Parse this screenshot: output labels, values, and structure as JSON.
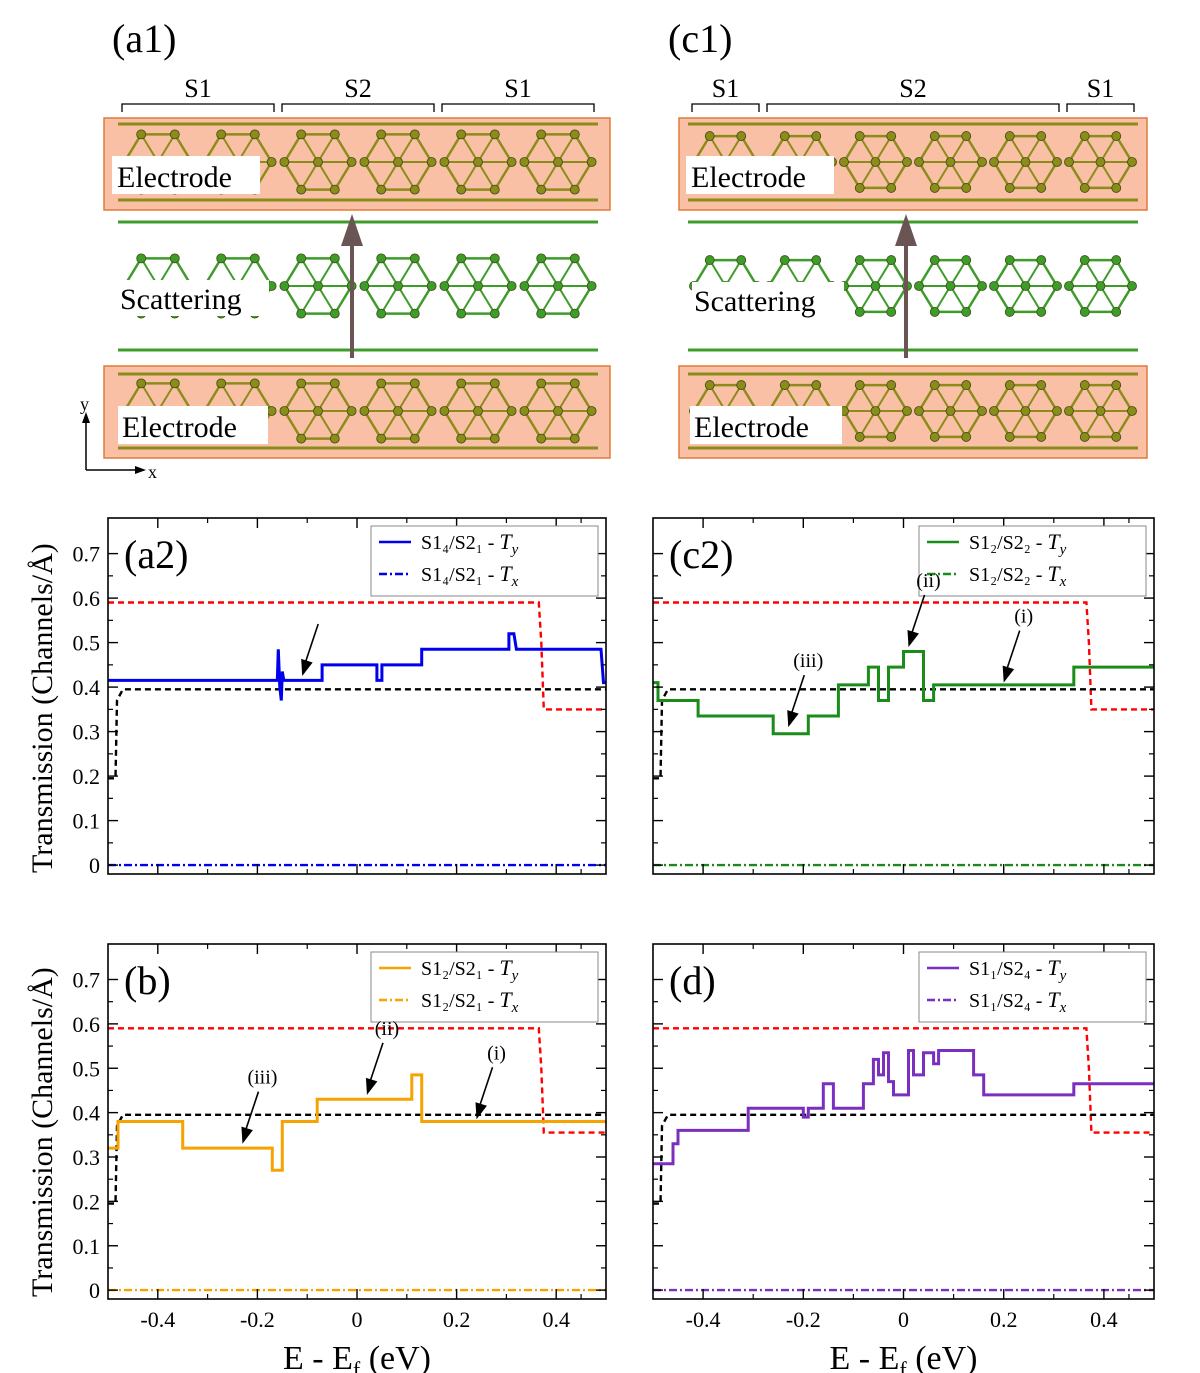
{
  "structures": [
    {
      "label": "(a1)",
      "segments": [
        {
          "text": "S1",
          "from": 0,
          "to": 4
        },
        {
          "text": "S2",
          "from": 4,
          "to": 8
        },
        {
          "text": "S1",
          "from": 8,
          "to": 12
        }
      ],
      "electrode_top": "Electrode",
      "scattering": "Scattering",
      "electrode_bottom": "Electrode",
      "axis_y": "y",
      "axis_x": "x",
      "colors": {
        "electrode_fill": "#f9c0a6",
        "electrode_edge": "#e07b39",
        "atom_top": "#8c8c1a",
        "atom_mid": "#3e9c2a",
        "arrow": "#6b5554"
      }
    },
    {
      "label": "(c1)",
      "segments": [
        {
          "text": "S1",
          "from": 0,
          "to": 2
        },
        {
          "text": "S2",
          "from": 2,
          "to": 10
        },
        {
          "text": "S1",
          "from": 10,
          "to": 12
        }
      ],
      "electrode_top": "Electrode",
      "scattering": "Scattering",
      "electrode_bottom": "Electrode",
      "colors": {
        "electrode_fill": "#f9c0a6",
        "electrode_edge": "#e07b39",
        "atom_top": "#8c8c1a",
        "atom_mid": "#3e9c2a",
        "arrow": "#6b5554"
      }
    }
  ],
  "chart_data": [
    {
      "type": "line",
      "panel_label": "(a2)",
      "ylabel": "Transmission (Channels/Å)",
      "xlabel": "",
      "xlim": [
        -0.5,
        0.5
      ],
      "ylim": [
        -0.02,
        0.78
      ],
      "yticks": [
        0,
        0.1,
        0.2,
        0.3,
        0.4,
        0.5,
        0.6,
        0.7
      ],
      "ytick_labels": [
        "0",
        "0.1",
        "0.2",
        "0.3",
        "0.4",
        "0.5",
        "0.6",
        "0.7"
      ],
      "legend": [
        {
          "label": "S1₄/S2₁ - ",
          "var": "T",
          "sub": "y",
          "color": "#0000ee",
          "style": "solid"
        },
        {
          "label": "S1₄/S2₁ - ",
          "var": "T",
          "sub": "x",
          "color": "#0000ee",
          "style": "dashdot"
        }
      ],
      "series": [
        {
          "name": "red-dashed",
          "color": "#ff0000",
          "style": "dashed",
          "x": [
            -0.5,
            0.365,
            0.37,
            0.375,
            0.5
          ],
          "y": [
            0.59,
            0.59,
            0.5,
            0.35,
            0.35
          ]
        },
        {
          "name": "black-dashed",
          "color": "#000000",
          "style": "dashed",
          "x": [
            -0.5,
            -0.485,
            -0.482,
            -0.475,
            -0.47,
            0.5
          ],
          "y": [
            0.195,
            0.195,
            0.37,
            0.385,
            0.395,
            0.395
          ]
        },
        {
          "name": "S1₄/S2₁ - Ty",
          "color": "#0000ee",
          "style": "solid",
          "x": [
            -0.5,
            -0.16,
            -0.158,
            -0.155,
            -0.152,
            -0.15,
            -0.147,
            -0.145,
            -0.07,
            -0.07,
            0.04,
            0.04,
            0.05,
            0.05,
            0.13,
            0.13,
            0.305,
            0.305,
            0.315,
            0.32,
            0.49,
            0.495,
            0.5
          ],
          "y": [
            0.415,
            0.415,
            0.485,
            0.4,
            0.37,
            0.435,
            0.415,
            0.415,
            0.415,
            0.45,
            0.45,
            0.415,
            0.415,
            0.45,
            0.45,
            0.485,
            0.485,
            0.52,
            0.52,
            0.485,
            0.485,
            0.41,
            0.41
          ]
        },
        {
          "name": "S1₄/S2₁ - Tx",
          "color": "#0000ee",
          "style": "dashdot",
          "x": [
            -0.5,
            0.5
          ],
          "y": [
            0,
            0
          ]
        }
      ],
      "annotations": [
        {
          "text": "",
          "x": -0.11,
          "y": 0.425
        }
      ]
    },
    {
      "type": "line",
      "panel_label": "(c2)",
      "xlim": [
        -0.5,
        0.5
      ],
      "ylim": [
        -0.02,
        0.78
      ],
      "legend": [
        {
          "label": "S1₂/S2₂ - ",
          "var": "T",
          "sub": "y",
          "color": "#1a8c1a",
          "style": "solid"
        },
        {
          "label": "S1₂/S2₂ - ",
          "var": "T",
          "sub": "x",
          "color": "#1a8c1a",
          "style": "dashdot"
        }
      ],
      "series": [
        {
          "name": "red-dashed",
          "color": "#ff0000",
          "style": "dashed",
          "x": [
            -0.5,
            0.365,
            0.37,
            0.375,
            0.5
          ],
          "y": [
            0.59,
            0.59,
            0.5,
            0.35,
            0.35
          ]
        },
        {
          "name": "black-dashed",
          "color": "#000000",
          "style": "dashed",
          "x": [
            -0.5,
            -0.485,
            -0.482,
            -0.475,
            -0.47,
            0.5
          ],
          "y": [
            0.195,
            0.195,
            0.37,
            0.385,
            0.395,
            0.395
          ]
        },
        {
          "name": "S1₂/S2₂ - Ty",
          "color": "#1a8c1a",
          "style": "solid",
          "x": [
            -0.5,
            -0.49,
            -0.49,
            -0.41,
            -0.41,
            -0.26,
            -0.26,
            -0.19,
            -0.19,
            -0.13,
            -0.13,
            -0.07,
            -0.07,
            -0.05,
            -0.05,
            -0.03,
            -0.03,
            0.0,
            0.0,
            0.04,
            0.04,
            0.06,
            0.06,
            0.34,
            0.34,
            0.5
          ],
          "y": [
            0.41,
            0.41,
            0.37,
            0.37,
            0.335,
            0.335,
            0.295,
            0.295,
            0.335,
            0.335,
            0.405,
            0.405,
            0.445,
            0.445,
            0.37,
            0.37,
            0.445,
            0.445,
            0.48,
            0.48,
            0.37,
            0.37,
            0.405,
            0.405,
            0.445,
            0.445
          ]
        },
        {
          "name": "S1₂/S2₂ - Tx",
          "color": "#1a8c1a",
          "style": "dashdot",
          "x": [
            -0.5,
            0.5
          ],
          "y": [
            0,
            0
          ]
        }
      ],
      "annotations": [
        {
          "text": "(iii)",
          "x": -0.23,
          "y": 0.31
        },
        {
          "text": "(ii)",
          "x": 0.01,
          "y": 0.49
        },
        {
          "text": "(i)",
          "x": 0.2,
          "y": 0.41
        }
      ]
    },
    {
      "type": "line",
      "panel_label": "(b)",
      "ylabel": "Transmission (Channels/Å)",
      "xlabel_main": "E - E",
      "xlabel_sub": "f",
      "xlabel_unit": " (eV)",
      "xlim": [
        -0.5,
        0.5
      ],
      "ylim": [
        -0.02,
        0.78
      ],
      "xticks": [
        -0.4,
        -0.2,
        0,
        0.2,
        0.4
      ],
      "xtick_labels": [
        "-0.4",
        "-0.2",
        "0",
        "0.2",
        "0.4"
      ],
      "yticks": [
        0,
        0.1,
        0.2,
        0.3,
        0.4,
        0.5,
        0.6,
        0.7
      ],
      "ytick_labels": [
        "0",
        "0.1",
        "0.2",
        "0.3",
        "0.4",
        "0.5",
        "0.6",
        "0.7"
      ],
      "legend": [
        {
          "label": "S1₂/S2₁ - ",
          "var": "T",
          "sub": "y",
          "color": "#f5a300",
          "style": "solid"
        },
        {
          "label": "S1₂/S2₁ - ",
          "var": "T",
          "sub": "x",
          "color": "#f5a300",
          "style": "dashdot"
        }
      ],
      "series": [
        {
          "name": "red-dashed",
          "color": "#ff0000",
          "style": "dashed",
          "x": [
            -0.5,
            0.365,
            0.37,
            0.375,
            0.5
          ],
          "y": [
            0.59,
            0.59,
            0.5,
            0.355,
            0.355
          ]
        },
        {
          "name": "black-dashed",
          "color": "#000000",
          "style": "dashed",
          "x": [
            -0.5,
            -0.485,
            -0.482,
            -0.475,
            -0.47,
            0.5
          ],
          "y": [
            0.195,
            0.195,
            0.37,
            0.385,
            0.395,
            0.395
          ]
        },
        {
          "name": "S1₂/S2₁ - Ty",
          "color": "#f5a300",
          "style": "solid",
          "x": [
            -0.5,
            -0.48,
            -0.48,
            -0.35,
            -0.35,
            -0.17,
            -0.17,
            -0.15,
            -0.15,
            -0.08,
            -0.08,
            0.11,
            0.11,
            0.13,
            0.13,
            0.5
          ],
          "y": [
            0.32,
            0.32,
            0.38,
            0.38,
            0.32,
            0.32,
            0.27,
            0.27,
            0.38,
            0.38,
            0.43,
            0.43,
            0.485,
            0.485,
            0.38,
            0.38
          ]
        },
        {
          "name": "S1₂/S2₁ - Tx",
          "color": "#f5a300",
          "style": "dashdot",
          "x": [
            -0.5,
            0.5
          ],
          "y": [
            0,
            0
          ]
        }
      ],
      "annotations": [
        {
          "text": "(iii)",
          "x": -0.23,
          "y": 0.33
        },
        {
          "text": "(ii)",
          "x": 0.02,
          "y": 0.44
        },
        {
          "text": "(i)",
          "x": 0.24,
          "y": 0.385
        }
      ]
    },
    {
      "type": "line",
      "panel_label": "(d)",
      "xlabel_main": "E - E",
      "xlabel_sub": "f",
      "xlabel_unit": " (eV)",
      "xlim": [
        -0.5,
        0.5
      ],
      "ylim": [
        -0.02,
        0.78
      ],
      "xticks": [
        -0.4,
        -0.2,
        0,
        0.2,
        0.4
      ],
      "xtick_labels": [
        "-0.4",
        "-0.2",
        "0",
        "0.2",
        "0.4"
      ],
      "legend": [
        {
          "label": "S1₁/S2₄ - ",
          "var": "T",
          "sub": "y",
          "color": "#7b2fbf",
          "style": "solid"
        },
        {
          "label": "S1₁/S2₄ - ",
          "var": "T",
          "sub": "x",
          "color": "#7b2fbf",
          "style": "dashdot"
        }
      ],
      "series": [
        {
          "name": "red-dashed",
          "color": "#ff0000",
          "style": "dashed",
          "x": [
            -0.5,
            0.365,
            0.37,
            0.375,
            0.5
          ],
          "y": [
            0.59,
            0.59,
            0.5,
            0.355,
            0.355
          ]
        },
        {
          "name": "black-dashed",
          "color": "#000000",
          "style": "dashed",
          "x": [
            -0.5,
            -0.485,
            -0.482,
            -0.475,
            -0.47,
            0.5
          ],
          "y": [
            0.195,
            0.195,
            0.37,
            0.385,
            0.395,
            0.395
          ]
        },
        {
          "name": "S1₁/S2₄ - Ty",
          "color": "#7b2fbf",
          "style": "solid",
          "x": [
            -0.5,
            -0.46,
            -0.46,
            -0.45,
            -0.45,
            -0.43,
            -0.43,
            -0.31,
            -0.31,
            -0.2,
            -0.2,
            -0.19,
            -0.19,
            -0.16,
            -0.16,
            -0.14,
            -0.14,
            -0.08,
            -0.08,
            -0.06,
            -0.06,
            -0.05,
            -0.05,
            -0.04,
            -0.04,
            -0.03,
            -0.03,
            -0.02,
            -0.02,
            0.01,
            0.01,
            0.02,
            0.02,
            0.04,
            0.04,
            0.06,
            0.06,
            0.07,
            0.07,
            0.14,
            0.14,
            0.16,
            0.16,
            0.34,
            0.34,
            0.5
          ],
          "y": [
            0.285,
            0.285,
            0.33,
            0.33,
            0.36,
            0.36,
            0.36,
            0.36,
            0.41,
            0.41,
            0.39,
            0.39,
            0.41,
            0.41,
            0.465,
            0.465,
            0.41,
            0.41,
            0.465,
            0.465,
            0.52,
            0.52,
            0.485,
            0.485,
            0.535,
            0.535,
            0.47,
            0.47,
            0.44,
            0.44,
            0.54,
            0.54,
            0.485,
            0.485,
            0.535,
            0.535,
            0.51,
            0.51,
            0.54,
            0.54,
            0.485,
            0.485,
            0.44,
            0.44,
            0.465,
            0.465
          ]
        },
        {
          "name": "S1₁/S2₄ - Tx",
          "color": "#7b2fbf",
          "style": "dashdot",
          "x": [
            -0.5,
            0.5
          ],
          "y": [
            0,
            0
          ]
        }
      ],
      "annotations": []
    }
  ]
}
